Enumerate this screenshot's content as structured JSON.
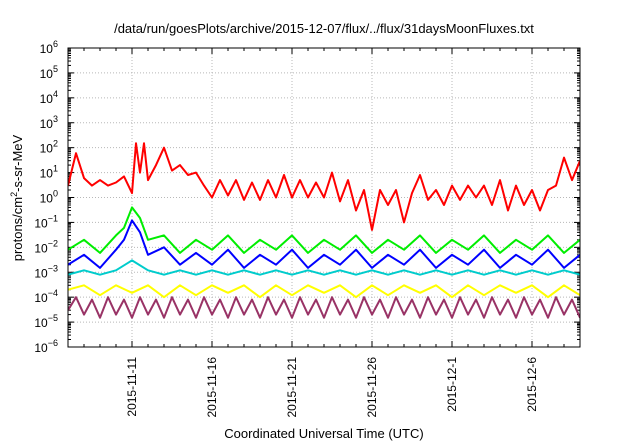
{
  "chart_data": {
    "type": "line",
    "title": "/data/run/goesPlots/archive/2015-12-07/flux/../flux/31daysMoonFluxes.txt",
    "xlabel": "Coordinated Universal Time (UTC)",
    "ylabel": {
      "base": "protons/cm",
      "sup": "2",
      "rest": "-s-sr-MeV"
    },
    "yscale": "log",
    "ylim_exp": [
      -6,
      6
    ],
    "xlim": [
      "2015-11-07",
      "2015-12-09"
    ],
    "x_ticks": [
      "2015-11-11",
      "2015-11-16",
      "2015-11-21",
      "2015-11-26",
      "2015-12-1",
      "2015-12-6"
    ],
    "grid": true,
    "legend": "none",
    "series": [
      {
        "color": "#ff0000",
        "points": [
          [
            "2015-11-07",
            3.0
          ],
          [
            "2015-11-07T12",
            60
          ],
          [
            "2015-11-08",
            6.0
          ],
          [
            "2015-11-08T12",
            3.0
          ],
          [
            "2015-11-09",
            5.0
          ],
          [
            "2015-11-09T12",
            3.0
          ],
          [
            "2015-11-10",
            4.0
          ],
          [
            "2015-11-10T12",
            7.0
          ],
          [
            "2015-11-11",
            1.5
          ],
          [
            "2015-11-11T06",
            150
          ],
          [
            "2015-11-11T12",
            10
          ],
          [
            "2015-11-11T18",
            150
          ],
          [
            "2015-11-12",
            5.0
          ],
          [
            "2015-11-12T12",
            20
          ],
          [
            "2015-11-13",
            100
          ],
          [
            "2015-11-13T12",
            12
          ],
          [
            "2015-11-14",
            20
          ],
          [
            "2015-11-14T12",
            8.0
          ],
          [
            "2015-11-15",
            10
          ],
          [
            "2015-11-15T12",
            3.0
          ],
          [
            "2015-11-16",
            1.0
          ],
          [
            "2015-11-16T12",
            5.0
          ],
          [
            "2015-11-17",
            1.2
          ],
          [
            "2015-11-17T12",
            5.0
          ],
          [
            "2015-11-18",
            0.8
          ],
          [
            "2015-11-18T12",
            4.0
          ],
          [
            "2015-11-19",
            0.8
          ],
          [
            "2015-11-19T12",
            5.0
          ],
          [
            "2015-11-20",
            1.0
          ],
          [
            "2015-11-20T12",
            8.0
          ],
          [
            "2015-11-21",
            1.0
          ],
          [
            "2015-11-21T12",
            5.0
          ],
          [
            "2015-11-22",
            1.0
          ],
          [
            "2015-11-22T12",
            4.0
          ],
          [
            "2015-11-23",
            1.0
          ],
          [
            "2015-11-23T12",
            10
          ],
          [
            "2015-11-24",
            0.7
          ],
          [
            "2015-11-24T12",
            5.0
          ],
          [
            "2015-11-25",
            0.3
          ],
          [
            "2015-11-25T12",
            2.0
          ],
          [
            "2015-11-26",
            0.05
          ],
          [
            "2015-11-26T12",
            2.0
          ],
          [
            "2015-11-27",
            0.5
          ],
          [
            "2015-11-27T12",
            2.0
          ],
          [
            "2015-11-28",
            0.1
          ],
          [
            "2015-11-28T12",
            1.5
          ],
          [
            "2015-11-29",
            8.0
          ],
          [
            "2015-11-29T12",
            0.8
          ],
          [
            "2015-11-30",
            2.0
          ],
          [
            "2015-11-30T12",
            0.5
          ],
          [
            "2015-12-01",
            3.0
          ],
          [
            "2015-12-01T12",
            0.8
          ],
          [
            "2015-12-02",
            3.0
          ],
          [
            "2015-12-02T12",
            1.0
          ],
          [
            "2015-12-03",
            3.0
          ],
          [
            "2015-12-03T12",
            0.5
          ],
          [
            "2015-12-04",
            5.0
          ],
          [
            "2015-12-04T12",
            0.3
          ],
          [
            "2015-12-05",
            3.0
          ],
          [
            "2015-12-05T12",
            0.5
          ],
          [
            "2015-12-06",
            2.0
          ],
          [
            "2015-12-06T12",
            0.3
          ],
          [
            "2015-12-07",
            2.0
          ],
          [
            "2015-12-07T12",
            3.0
          ],
          [
            "2015-12-08",
            40
          ],
          [
            "2015-12-08T12",
            5.0
          ],
          [
            "2015-12-09",
            30
          ]
        ]
      },
      {
        "color": "#00ee00",
        "points": [
          [
            "2015-11-07",
            0.008
          ],
          [
            "2015-11-08",
            0.02
          ],
          [
            "2015-11-09",
            0.006
          ],
          [
            "2015-11-10",
            0.03
          ],
          [
            "2015-11-10T12",
            0.06
          ],
          [
            "2015-11-11",
            0.4
          ],
          [
            "2015-11-11T12",
            0.15
          ],
          [
            "2015-11-12",
            0.02
          ],
          [
            "2015-11-13",
            0.03
          ],
          [
            "2015-11-14",
            0.006
          ],
          [
            "2015-11-15",
            0.02
          ],
          [
            "2015-11-16",
            0.008
          ],
          [
            "2015-11-17",
            0.03
          ],
          [
            "2015-11-18",
            0.006
          ],
          [
            "2015-11-19",
            0.02
          ],
          [
            "2015-11-20",
            0.008
          ],
          [
            "2015-11-21",
            0.03
          ],
          [
            "2015-11-22",
            0.006
          ],
          [
            "2015-11-23",
            0.02
          ],
          [
            "2015-11-24",
            0.008
          ],
          [
            "2015-11-25",
            0.03
          ],
          [
            "2015-11-26",
            0.006
          ],
          [
            "2015-11-27",
            0.02
          ],
          [
            "2015-11-28",
            0.008
          ],
          [
            "2015-11-29",
            0.03
          ],
          [
            "2015-11-30",
            0.006
          ],
          [
            "2015-12-01",
            0.02
          ],
          [
            "2015-12-02",
            0.008
          ],
          [
            "2015-12-03",
            0.03
          ],
          [
            "2015-12-04",
            0.006
          ],
          [
            "2015-12-05",
            0.02
          ],
          [
            "2015-12-06",
            0.008
          ],
          [
            "2015-12-07",
            0.03
          ],
          [
            "2015-12-08",
            0.006
          ],
          [
            "2015-12-09",
            0.02
          ]
        ]
      },
      {
        "color": "#0000ff",
        "points": [
          [
            "2015-11-07",
            0.002
          ],
          [
            "2015-11-08",
            0.005
          ],
          [
            "2015-11-09",
            0.0015
          ],
          [
            "2015-11-10",
            0.008
          ],
          [
            "2015-11-10T12",
            0.02
          ],
          [
            "2015-11-11",
            0.12
          ],
          [
            "2015-11-11T12",
            0.04
          ],
          [
            "2015-11-12",
            0.005
          ],
          [
            "2015-11-13",
            0.01
          ],
          [
            "2015-11-14",
            0.002
          ],
          [
            "2015-11-15",
            0.006
          ],
          [
            "2015-11-16",
            0.002
          ],
          [
            "2015-11-17",
            0.008
          ],
          [
            "2015-11-18",
            0.0015
          ],
          [
            "2015-11-19",
            0.005
          ],
          [
            "2015-11-20",
            0.002
          ],
          [
            "2015-11-21",
            0.008
          ],
          [
            "2015-11-22",
            0.0015
          ],
          [
            "2015-11-23",
            0.005
          ],
          [
            "2015-11-24",
            0.002
          ],
          [
            "2015-11-25",
            0.008
          ],
          [
            "2015-11-26",
            0.0015
          ],
          [
            "2015-11-27",
            0.005
          ],
          [
            "2015-11-28",
            0.002
          ],
          [
            "2015-11-29",
            0.008
          ],
          [
            "2015-11-30",
            0.0015
          ],
          [
            "2015-12-01",
            0.005
          ],
          [
            "2015-12-02",
            0.002
          ],
          [
            "2015-12-03",
            0.008
          ],
          [
            "2015-12-04",
            0.0015
          ],
          [
            "2015-12-05",
            0.005
          ],
          [
            "2015-12-06",
            0.002
          ],
          [
            "2015-12-07",
            0.008
          ],
          [
            "2015-12-08",
            0.0015
          ],
          [
            "2015-12-09",
            0.005
          ]
        ]
      },
      {
        "color": "#00cccc",
        "points": [
          [
            "2015-11-07",
            0.0008
          ],
          [
            "2015-11-08",
            0.0012
          ],
          [
            "2015-11-09",
            0.0008
          ],
          [
            "2015-11-10",
            0.0012
          ],
          [
            "2015-11-11",
            0.003
          ],
          [
            "2015-11-12",
            0.0012
          ],
          [
            "2015-11-13",
            0.0008
          ],
          [
            "2015-11-14",
            0.0012
          ],
          [
            "2015-11-15",
            0.0008
          ],
          [
            "2015-11-16",
            0.0012
          ],
          [
            "2015-11-17",
            0.0008
          ],
          [
            "2015-11-18",
            0.0012
          ],
          [
            "2015-11-19",
            0.0008
          ],
          [
            "2015-11-20",
            0.0012
          ],
          [
            "2015-11-21",
            0.0008
          ],
          [
            "2015-11-22",
            0.0012
          ],
          [
            "2015-11-23",
            0.0008
          ],
          [
            "2015-11-24",
            0.0012
          ],
          [
            "2015-11-25",
            0.0008
          ],
          [
            "2015-11-26",
            0.0012
          ],
          [
            "2015-11-27",
            0.0008
          ],
          [
            "2015-11-28",
            0.0012
          ],
          [
            "2015-11-29",
            0.0008
          ],
          [
            "2015-11-30",
            0.0012
          ],
          [
            "2015-12-01",
            0.0008
          ],
          [
            "2015-12-02",
            0.0012
          ],
          [
            "2015-12-03",
            0.0008
          ],
          [
            "2015-12-04",
            0.0012
          ],
          [
            "2015-12-05",
            0.0008
          ],
          [
            "2015-12-06",
            0.0012
          ],
          [
            "2015-12-07",
            0.0008
          ],
          [
            "2015-12-08",
            0.0012
          ],
          [
            "2015-12-09",
            0.0008
          ]
        ]
      },
      {
        "color": "#ffff00",
        "points": [
          [
            "2015-11-07",
            0.0002
          ],
          [
            "2015-11-08",
            0.0003
          ],
          [
            "2015-11-09",
            0.00012
          ],
          [
            "2015-11-10",
            0.0003
          ],
          [
            "2015-11-11",
            0.00015
          ],
          [
            "2015-11-12",
            0.0003
          ],
          [
            "2015-11-13",
            0.0001
          ],
          [
            "2015-11-14",
            0.0003
          ],
          [
            "2015-11-15",
            0.00012
          ],
          [
            "2015-11-16",
            0.0003
          ],
          [
            "2015-11-17",
            0.00015
          ],
          [
            "2015-11-18",
            0.0003
          ],
          [
            "2015-11-19",
            0.0001
          ],
          [
            "2015-11-20",
            0.0003
          ],
          [
            "2015-11-21",
            0.00012
          ],
          [
            "2015-11-22",
            0.0003
          ],
          [
            "2015-11-23",
            0.00015
          ],
          [
            "2015-11-24",
            0.0003
          ],
          [
            "2015-11-25",
            0.0001
          ],
          [
            "2015-11-26",
            0.0003
          ],
          [
            "2015-11-27",
            0.00012
          ],
          [
            "2015-11-28",
            0.0003
          ],
          [
            "2015-11-29",
            0.00015
          ],
          [
            "2015-11-30",
            0.0003
          ],
          [
            "2015-12-01",
            0.0001
          ],
          [
            "2015-12-02",
            0.0003
          ],
          [
            "2015-12-03",
            0.00012
          ],
          [
            "2015-12-04",
            0.0003
          ],
          [
            "2015-12-05",
            0.00015
          ],
          [
            "2015-12-06",
            0.0003
          ],
          [
            "2015-12-07",
            0.0001
          ],
          [
            "2015-12-08",
            0.0003
          ],
          [
            "2015-12-09",
            0.00012
          ]
        ]
      },
      {
        "color": "#993366",
        "points": [
          [
            "2015-11-07",
            3e-05
          ],
          [
            "2015-11-07T12",
            0.0001
          ],
          [
            "2015-11-08",
            2e-05
          ],
          [
            "2015-11-08T12",
            8e-05
          ],
          [
            "2015-11-09",
            1.5e-05
          ],
          [
            "2015-11-09T12",
            0.0001
          ],
          [
            "2015-11-10",
            2e-05
          ],
          [
            "2015-11-10T12",
            8e-05
          ],
          [
            "2015-11-11",
            1.5e-05
          ],
          [
            "2015-11-11T12",
            0.0001
          ],
          [
            "2015-11-12",
            2e-05
          ],
          [
            "2015-11-12T12",
            8e-05
          ],
          [
            "2015-11-13",
            1.5e-05
          ],
          [
            "2015-11-13T12",
            0.0001
          ],
          [
            "2015-11-14",
            2e-05
          ],
          [
            "2015-11-14T12",
            8e-05
          ],
          [
            "2015-11-15",
            1.5e-05
          ],
          [
            "2015-11-15T12",
            0.0001
          ],
          [
            "2015-11-16",
            2e-05
          ],
          [
            "2015-11-16T12",
            8e-05
          ],
          [
            "2015-11-17",
            1.5e-05
          ],
          [
            "2015-11-17T12",
            0.0001
          ],
          [
            "2015-11-18",
            2e-05
          ],
          [
            "2015-11-18T12",
            8e-05
          ],
          [
            "2015-11-19",
            1.5e-05
          ],
          [
            "2015-11-19T12",
            0.0001
          ],
          [
            "2015-11-20",
            2e-05
          ],
          [
            "2015-11-20T12",
            8e-05
          ],
          [
            "2015-11-21",
            1.5e-05
          ],
          [
            "2015-11-21T12",
            0.0001
          ],
          [
            "2015-11-22",
            2e-05
          ],
          [
            "2015-11-22T12",
            8e-05
          ],
          [
            "2015-11-23",
            1.5e-05
          ],
          [
            "2015-11-23T12",
            0.0001
          ],
          [
            "2015-11-24",
            2e-05
          ],
          [
            "2015-11-24T12",
            8e-05
          ],
          [
            "2015-11-25",
            1.5e-05
          ],
          [
            "2015-11-25T12",
            0.0001
          ],
          [
            "2015-11-26",
            2e-05
          ],
          [
            "2015-11-26T12",
            8e-05
          ],
          [
            "2015-11-27",
            1.5e-05
          ],
          [
            "2015-11-27T12",
            0.0001
          ],
          [
            "2015-11-28",
            2e-05
          ],
          [
            "2015-11-28T12",
            8e-05
          ],
          [
            "2015-11-29",
            1.5e-05
          ],
          [
            "2015-11-29T12",
            0.0001
          ],
          [
            "2015-11-30",
            2e-05
          ],
          [
            "2015-11-30T12",
            8e-05
          ],
          [
            "2015-12-01",
            1.5e-05
          ],
          [
            "2015-12-01T12",
            0.0001
          ],
          [
            "2015-12-02",
            2e-05
          ],
          [
            "2015-12-02T12",
            8e-05
          ],
          [
            "2015-12-03",
            1.5e-05
          ],
          [
            "2015-12-03T12",
            0.0001
          ],
          [
            "2015-12-04",
            2e-05
          ],
          [
            "2015-12-04T12",
            8e-05
          ],
          [
            "2015-12-05",
            1.5e-05
          ],
          [
            "2015-12-05T12",
            0.0001
          ],
          [
            "2015-12-06",
            2e-05
          ],
          [
            "2015-12-06T12",
            8e-05
          ],
          [
            "2015-12-07",
            1.5e-05
          ],
          [
            "2015-12-07T12",
            0.0001
          ],
          [
            "2015-12-08",
            2e-05
          ],
          [
            "2015-12-08T12",
            8e-05
          ],
          [
            "2015-12-09",
            1.5e-05
          ]
        ]
      }
    ]
  }
}
